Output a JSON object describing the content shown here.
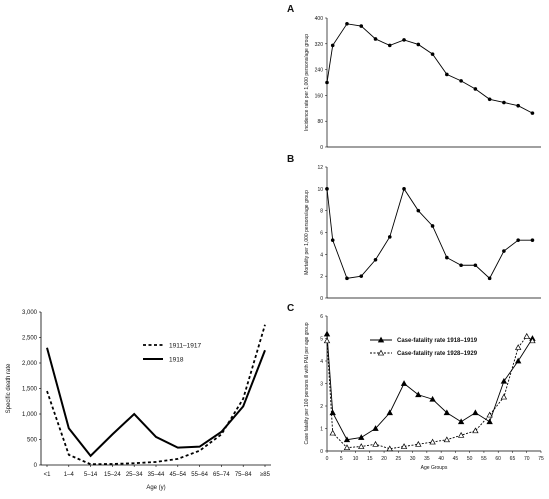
{
  "chart_data": [
    {
      "id": "left",
      "type": "line",
      "xlabel": "Age (y)",
      "ylabel": "Specific death rate",
      "categories": [
        "<1",
        "1–4",
        "5–14",
        "15–24",
        "25–34",
        "35–44",
        "45–54",
        "55–64",
        "65–74",
        "75–84",
        "≥85"
      ],
      "ylim": [
        0,
        3000
      ],
      "yticks": [
        "0",
        "500",
        "1,000",
        "1,500",
        "2,000",
        "2,500",
        "3,000"
      ],
      "yticks_values": [
        0,
        500,
        1000,
        1500,
        2000,
        2500,
        3000
      ],
      "legend_position": "top-center",
      "series": [
        {
          "name": "1911–1917",
          "style": "dashed",
          "values": [
            1450,
            200,
            15,
            20,
            35,
            60,
            120,
            280,
            600,
            1300,
            2750
          ]
        },
        {
          "name": "1918",
          "style": "solid",
          "values": [
            2300,
            720,
            180,
            600,
            1000,
            550,
            340,
            360,
            650,
            1150,
            2250
          ]
        }
      ]
    },
    {
      "id": "A",
      "panel_label": "A",
      "type": "line",
      "ylabel": "Incidence rate per 1,000 persons/age group",
      "xlim": [
        0,
        75
      ],
      "ylim": [
        0,
        400
      ],
      "yticks": [
        "0",
        "80",
        "160",
        "240",
        "320",
        "400"
      ],
      "yticks_values": [
        0,
        80,
        160,
        240,
        320,
        400
      ],
      "series": [
        {
          "x": [
            0,
            2,
            7,
            12,
            17,
            22,
            27,
            32,
            37,
            42,
            47,
            52,
            57,
            62,
            67,
            72
          ],
          "y": [
            200,
            315,
            382,
            375,
            335,
            315,
            332,
            318,
            288,
            225,
            205,
            180,
            148,
            138,
            128,
            105
          ]
        }
      ]
    },
    {
      "id": "B",
      "panel_label": "B",
      "type": "line",
      "ylabel": "Mortality per 1,000 persons/age group",
      "xlim": [
        0,
        75
      ],
      "ylim": [
        0,
        12
      ],
      "yticks": [
        "0",
        "2",
        "4",
        "6",
        "8",
        "10",
        "12"
      ],
      "yticks_values": [
        0,
        2,
        4,
        6,
        8,
        10,
        12
      ],
      "series": [
        {
          "x": [
            0,
            2,
            7,
            12,
            17,
            22,
            27,
            32,
            37,
            42,
            47,
            52,
            57,
            62,
            67,
            72
          ],
          "y": [
            10.0,
            5.3,
            1.8,
            2.0,
            3.5,
            5.6,
            10.0,
            8.0,
            6.6,
            3.7,
            3.0,
            3.0,
            1.8,
            4.3,
            5.3,
            5.3
          ]
        }
      ]
    },
    {
      "id": "C",
      "panel_label": "C",
      "type": "line",
      "xlabel": "Age Groups",
      "ylabel": "Case fatality per 100 persons ill with P&I per age group",
      "xlim": [
        0,
        75
      ],
      "ylim": [
        0,
        6
      ],
      "xticks": [
        "0",
        "5",
        "10",
        "15",
        "20",
        "25",
        "30",
        "35",
        "40",
        "45",
        "50",
        "55",
        "60",
        "65",
        "70",
        "75"
      ],
      "xticks_values": [
        0,
        5,
        10,
        15,
        20,
        25,
        30,
        35,
        40,
        45,
        50,
        55,
        60,
        65,
        70,
        75
      ],
      "yticks": [
        "0",
        "1",
        "2",
        "3",
        "4",
        "5",
        "6"
      ],
      "yticks_values": [
        0,
        1,
        2,
        3,
        4,
        5,
        6
      ],
      "legend_position": "top-center",
      "series": [
        {
          "name": "Case-fatality rate 1918–1919",
          "style": "solid",
          "marker": "filled-triangle",
          "x": [
            0,
            2,
            7,
            12,
            17,
            22,
            27,
            32,
            37,
            42,
            47,
            52,
            57,
            62,
            67,
            72
          ],
          "y": [
            5.2,
            1.7,
            0.5,
            0.6,
            1.0,
            1.7,
            3.0,
            2.5,
            2.3,
            1.7,
            1.3,
            1.7,
            1.3,
            3.1,
            4.0,
            5.0
          ]
        },
        {
          "name": "Case-fatality rate 1928–1929",
          "style": "dashed",
          "marker": "open-triangle",
          "x": [
            0,
            2,
            7,
            12,
            17,
            22,
            27,
            32,
            37,
            42,
            47,
            52,
            57,
            62,
            67,
            70,
            72
          ],
          "y": [
            4.9,
            0.8,
            0.15,
            0.2,
            0.3,
            0.1,
            0.2,
            0.3,
            0.4,
            0.5,
            0.7,
            0.9,
            1.6,
            2.4,
            4.6,
            5.1,
            4.9
          ]
        }
      ]
    }
  ]
}
